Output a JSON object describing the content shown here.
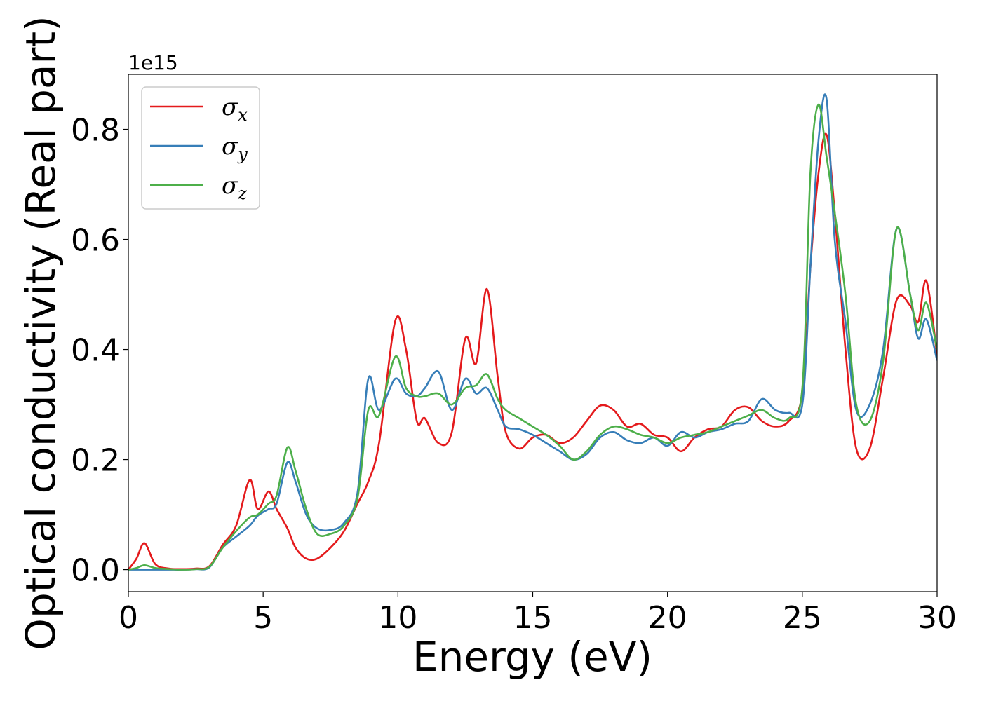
{
  "chart_data": {
    "type": "line",
    "xlabel": "Energy (eV)",
    "ylabel": "Optical conductivity (Real part)",
    "y_offset_label": "1e15",
    "xlim": [
      0,
      30
    ],
    "ylim": [
      -0.04,
      0.9
    ],
    "x_ticks": [
      0,
      5,
      10,
      15,
      20,
      25,
      30
    ],
    "x_tick_labels": [
      "0",
      "5",
      "10",
      "15",
      "20",
      "25",
      "30"
    ],
    "y_ticks": [
      0.0,
      0.2,
      0.4,
      0.6,
      0.8
    ],
    "y_tick_labels": [
      "0.0",
      "0.2",
      "0.4",
      "0.6",
      "0.8"
    ],
    "grid": false,
    "legend_position": "top-left",
    "x": [
      0,
      0.3,
      0.6,
      1.0,
      1.5,
      2.0,
      2.5,
      3.0,
      3.5,
      4.0,
      4.5,
      4.8,
      5.2,
      5.5,
      5.9,
      6.2,
      6.6,
      7.0,
      7.5,
      8.0,
      8.5,
      8.9,
      9.3,
      9.9,
      10.3,
      10.7,
      11.0,
      11.5,
      12.0,
      12.5,
      12.9,
      13.3,
      13.7,
      14.0,
      14.5,
      15.0,
      15.5,
      16.0,
      16.5,
      17.0,
      17.5,
      18.0,
      18.5,
      19.0,
      19.5,
      20.0,
      20.5,
      21.0,
      21.5,
      22.0,
      22.5,
      23.0,
      23.5,
      24.0,
      24.5,
      25.0,
      25.3,
      25.6,
      25.9,
      26.2,
      26.6,
      27.0,
      27.5,
      28.0,
      28.5,
      29.0,
      29.3,
      29.6,
      30.0
    ],
    "series": [
      {
        "name": "σx",
        "color": "#e41a1c",
        "values": [
          0.0,
          0.02,
          0.048,
          0.01,
          0.002,
          0.001,
          0.002,
          0.006,
          0.045,
          0.08,
          0.163,
          0.11,
          0.142,
          0.11,
          0.075,
          0.04,
          0.02,
          0.02,
          0.04,
          0.07,
          0.12,
          0.16,
          0.23,
          0.452,
          0.4,
          0.27,
          0.275,
          0.23,
          0.25,
          0.42,
          0.375,
          0.51,
          0.35,
          0.25,
          0.22,
          0.24,
          0.245,
          0.23,
          0.24,
          0.27,
          0.298,
          0.29,
          0.26,
          0.265,
          0.245,
          0.24,
          0.215,
          0.24,
          0.255,
          0.26,
          0.29,
          0.295,
          0.27,
          0.26,
          0.27,
          0.32,
          0.55,
          0.72,
          0.79,
          0.65,
          0.4,
          0.22,
          0.22,
          0.35,
          0.49,
          0.48,
          0.45,
          0.525,
          0.39
        ]
      },
      {
        "name": "σy",
        "color": "#377eb8",
        "values": [
          0.0,
          0.0,
          0.0,
          0.0,
          0.0,
          0.0,
          0.001,
          0.004,
          0.04,
          0.06,
          0.08,
          0.098,
          0.11,
          0.12,
          0.195,
          0.16,
          0.1,
          0.075,
          0.072,
          0.085,
          0.14,
          0.347,
          0.29,
          0.347,
          0.32,
          0.315,
          0.33,
          0.36,
          0.29,
          0.347,
          0.32,
          0.33,
          0.29,
          0.26,
          0.255,
          0.245,
          0.23,
          0.215,
          0.2,
          0.21,
          0.24,
          0.25,
          0.235,
          0.23,
          0.24,
          0.225,
          0.25,
          0.24,
          0.25,
          0.255,
          0.265,
          0.27,
          0.31,
          0.29,
          0.285,
          0.3,
          0.55,
          0.78,
          0.855,
          0.6,
          0.45,
          0.29,
          0.3,
          0.4,
          0.62,
          0.5,
          0.42,
          0.455,
          0.38
        ]
      },
      {
        "name": "σz",
        "color": "#4daf4a",
        "values": [
          0.0,
          0.003,
          0.008,
          0.003,
          0.001,
          0.0,
          0.001,
          0.005,
          0.04,
          0.07,
          0.095,
          0.1,
          0.12,
          0.135,
          0.222,
          0.18,
          0.11,
          0.065,
          0.065,
          0.08,
          0.13,
          0.29,
          0.28,
          0.387,
          0.33,
          0.315,
          0.315,
          0.32,
          0.3,
          0.33,
          0.335,
          0.355,
          0.31,
          0.29,
          0.275,
          0.26,
          0.245,
          0.225,
          0.2,
          0.215,
          0.245,
          0.26,
          0.255,
          0.245,
          0.24,
          0.23,
          0.24,
          0.245,
          0.25,
          0.26,
          0.27,
          0.28,
          0.29,
          0.275,
          0.275,
          0.33,
          0.72,
          0.845,
          0.75,
          0.65,
          0.5,
          0.3,
          0.27,
          0.38,
          0.62,
          0.5,
          0.435,
          0.485,
          0.4
        ]
      }
    ]
  }
}
